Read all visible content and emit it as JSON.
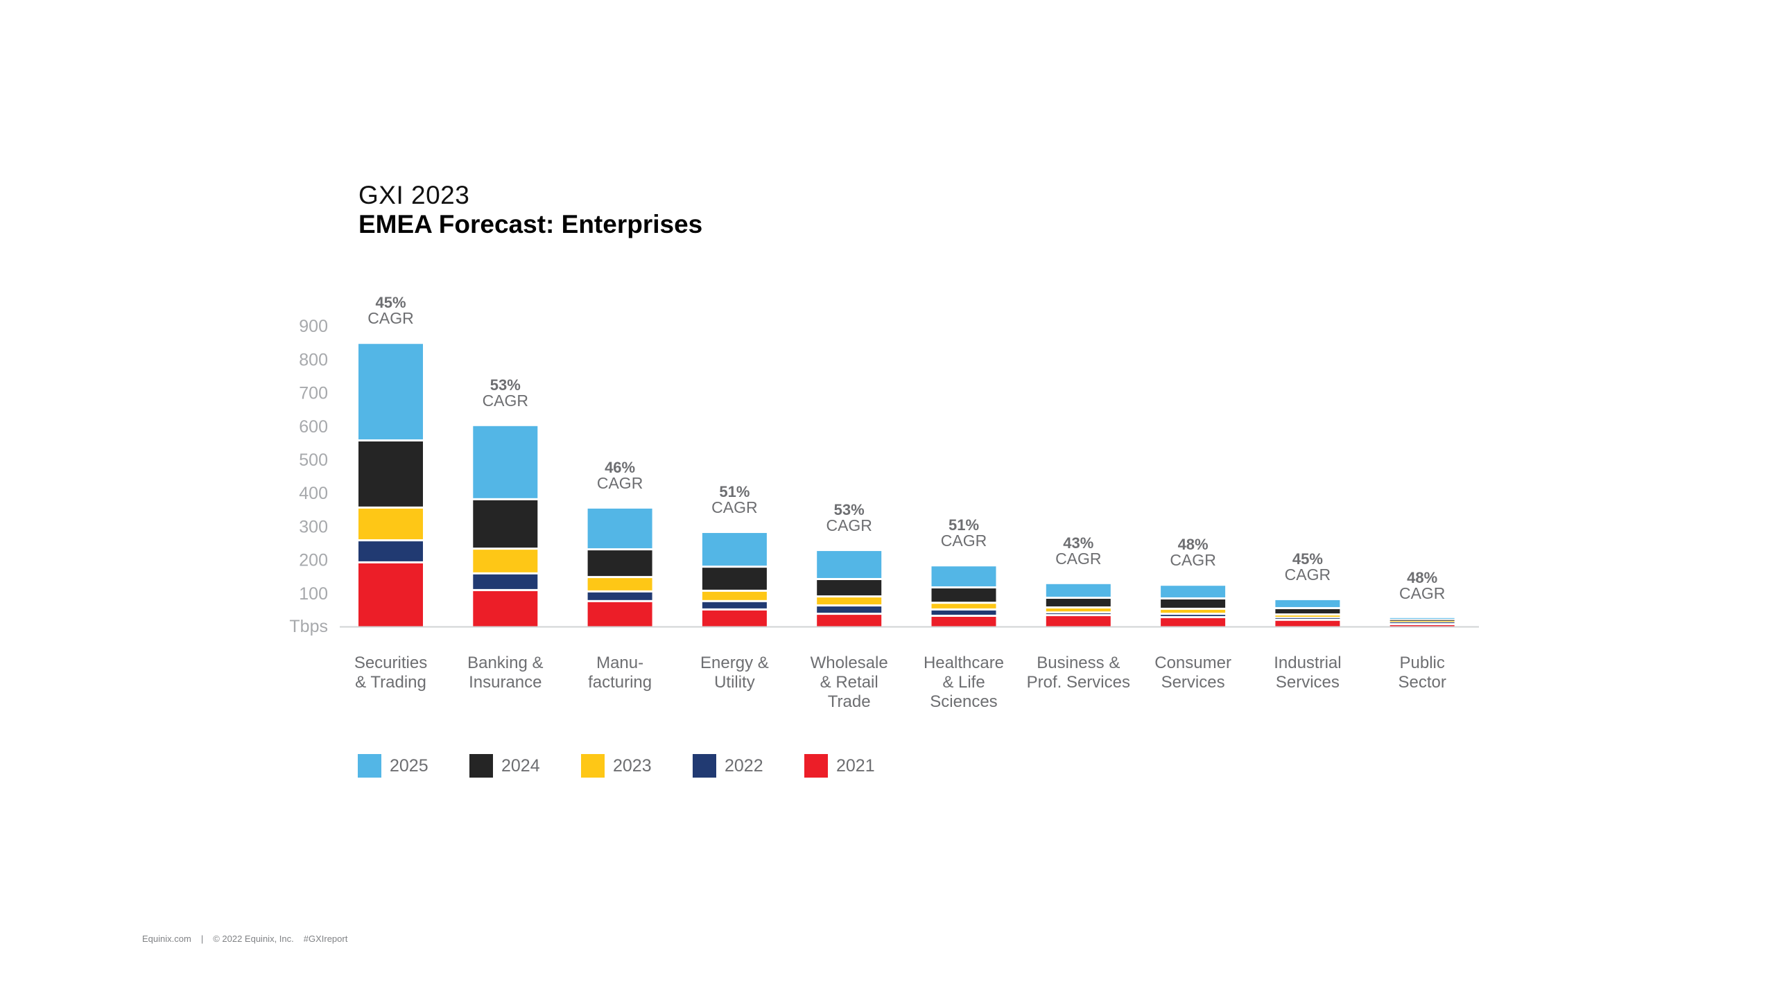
{
  "header": {
    "title_top": "GXI 2023",
    "title_main": "EMEA Forecast: Enterprises"
  },
  "footer": {
    "site": "Equinix.com",
    "separator": "|",
    "copyright": "© 2022 Equinix, Inc.",
    "hashtag": "#GXIreport"
  },
  "colors": {
    "2025": "#53b6e6",
    "2024": "#252525",
    "2023": "#fec716",
    "2022": "#213a72",
    "2021": "#ec1e28",
    "axis": "#d1d3d4",
    "text_gray": "#6d6e71",
    "tick_gray": "#a7a9ac"
  },
  "chart_data": {
    "type": "bar",
    "stacked": true,
    "title": "GXI 2023 EMEA Forecast: Enterprises",
    "xlabel": "",
    "ylabel": "Tbps",
    "ylim": [
      0,
      900
    ],
    "yticks": [
      100,
      200,
      300,
      400,
      500,
      600,
      700,
      800,
      900
    ],
    "yunit_label": "Tbps",
    "grid": false,
    "legend_position": "bottom-left",
    "categories": [
      [
        "Securities",
        "& Trading"
      ],
      [
        "Banking &",
        "Insurance"
      ],
      [
        "Manu-",
        "facturing"
      ],
      [
        "Energy &",
        "Utility"
      ],
      [
        "Wholesale",
        "& Retail",
        "Trade"
      ],
      [
        "Healthcare",
        "& Life",
        "Sciences"
      ],
      [
        "Business &",
        "Prof. Services"
      ],
      [
        "Consumer",
        "Services"
      ],
      [
        "Industrial",
        "Services"
      ],
      [
        "Public",
        "Sector"
      ]
    ],
    "cagr": [
      "45%",
      "53%",
      "46%",
      "51%",
      "53%",
      "51%",
      "43%",
      "48%",
      "45%",
      "48%"
    ],
    "cagr_suffix": "CAGR",
    "note": "Stacked segments; cumulative totals by year (2021 bottom to 2025 top)",
    "series": [
      {
        "name": "2021",
        "values": [
          189,
          106,
          73,
          48,
          35,
          29,
          31,
          25,
          17,
          4
        ]
      },
      {
        "name": "2022",
        "values": [
          66,
          50,
          29,
          25,
          25,
          19,
          8,
          10,
          6,
          4
        ]
      },
      {
        "name": "2023",
        "values": [
          98,
          74,
          43,
          31,
          27,
          20,
          15,
          15,
          10,
          3
        ]
      },
      {
        "name": "2024",
        "values": [
          201,
          148,
          83,
          72,
          52,
          46,
          29,
          31,
          19,
          6
        ]
      },
      {
        "name": "2025",
        "values": [
          292,
          222,
          125,
          104,
          87,
          66,
          44,
          41,
          27,
          6
        ]
      }
    ],
    "totals_2025": [
      846,
      600,
      353,
      280,
      226,
      180,
      127,
      122,
      79,
      23
    ]
  },
  "legend": [
    {
      "label": "2025",
      "color": "#53b6e6"
    },
    {
      "label": "2024",
      "color": "#252525"
    },
    {
      "label": "2023",
      "color": "#fec716"
    },
    {
      "label": "2022",
      "color": "#213a72"
    },
    {
      "label": "2021",
      "color": "#ec1e28"
    }
  ]
}
